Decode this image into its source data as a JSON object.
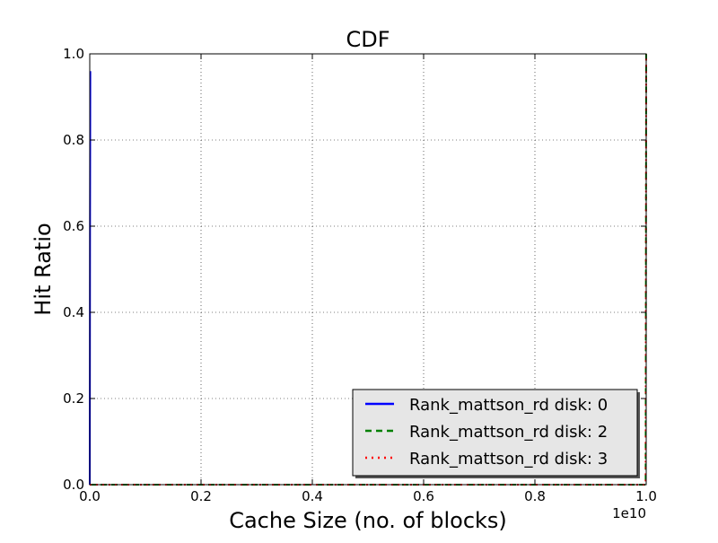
{
  "chart_data": {
    "type": "line",
    "title": "CDF",
    "xlabel": "Cache Size (no. of blocks)",
    "ylabel": "Hit Ratio",
    "x_offset_label": "1e10",
    "xlim": [
      0,
      10000000000
    ],
    "ylim": [
      0,
      1
    ],
    "x_ticks": [
      0,
      2000000000,
      4000000000,
      6000000000,
      8000000000,
      10000000000
    ],
    "x_tick_labels": [
      "0.0",
      "0.2",
      "0.4",
      "0.6",
      "0.8",
      "1.0"
    ],
    "y_ticks": [
      0,
      0.2,
      0.4,
      0.6,
      0.8,
      1.0
    ],
    "y_tick_labels": [
      "0.0",
      "0.2",
      "0.4",
      "0.6",
      "0.8",
      "1.0"
    ],
    "grid": true,
    "legend_position": "lower-right",
    "series": [
      {
        "name": "Rank_mattson_rd disk: 0",
        "color": "#0000ff",
        "style": "solid",
        "x": [
          0,
          1000000,
          5000000,
          10000000
        ],
        "y": [
          0.0,
          0.05,
          0.6,
          0.96
        ]
      },
      {
        "name": "Rank_mattson_rd disk: 2",
        "color": "#008000",
        "style": "dashed",
        "x": [
          0,
          5000000000,
          9990000000,
          10000000000
        ],
        "y": [
          0.0,
          0.0,
          0.0,
          1.0
        ]
      },
      {
        "name": "Rank_mattson_rd disk: 3",
        "color": "#ff0000",
        "style": "dotted",
        "x": [
          0,
          5000000000,
          9990000000,
          10000000000
        ],
        "y": [
          0.0,
          0.0,
          0.0,
          1.0
        ]
      }
    ]
  }
}
